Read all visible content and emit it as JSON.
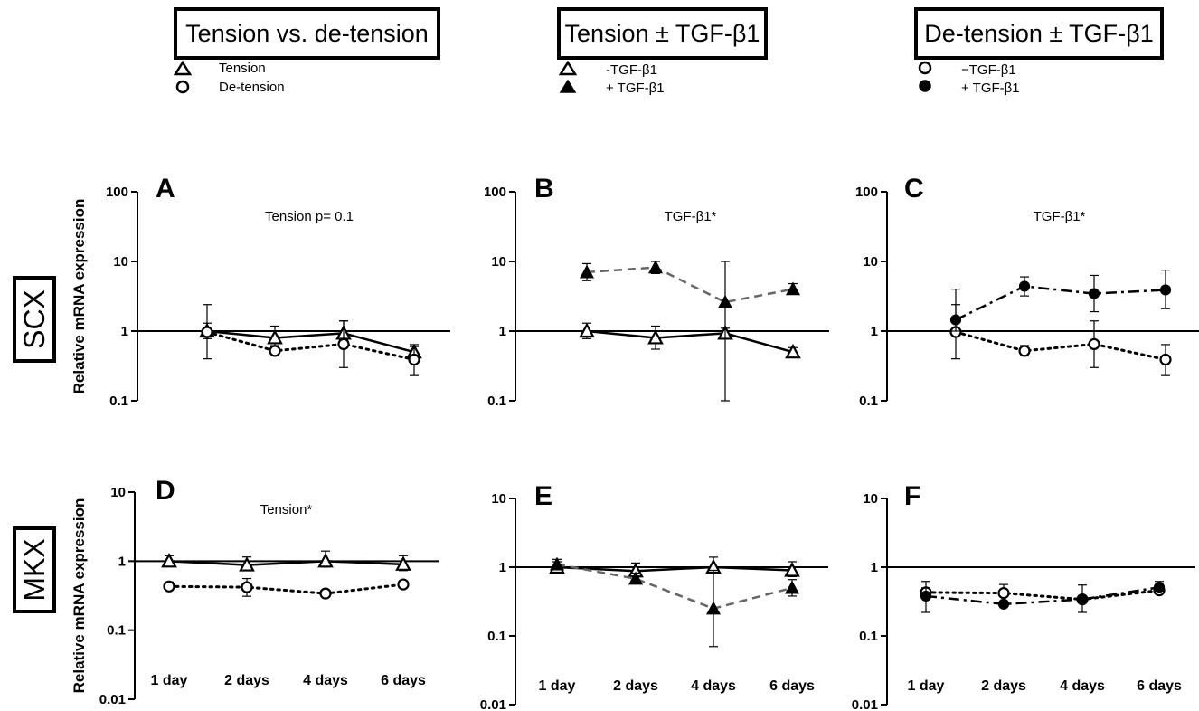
{
  "headers": {
    "tension_vs_detension": "Tension vs. de-tension",
    "tension_tgf": "Tension ± TGF-β1",
    "detension_tgf": "De-tension ± TGF-β1"
  },
  "legends": {
    "col1": [
      "Tension",
      "De-tension"
    ],
    "col2": [
      "-TGF-β1",
      "+ TGF-β1"
    ],
    "col3": [
      "−TGF-β1",
      "+ TGF-β1"
    ]
  },
  "row_labels": {
    "top": "SCX",
    "bottom": "MKX"
  },
  "y_axis_label": "Relative mRNA expression",
  "chart_data": [
    {
      "panel": "A",
      "type": "line",
      "row": "SCX",
      "annotation": "Tension p= 0.1",
      "x": [
        "1 day",
        "2 days",
        "4 days",
        "6 days"
      ],
      "show_x_labels": false,
      "yscale": "log",
      "ylim": [
        0.1,
        100
      ],
      "yticks": [
        "0.1",
        "1",
        "10",
        "100"
      ],
      "reference_line": 1,
      "ylabel": "Relative mRNA expression",
      "series": [
        {
          "name": "Tension",
          "marker": "triangle-open",
          "line": "solid",
          "color": "#000000",
          "values": [
            1.0,
            0.8,
            0.93,
            0.5
          ],
          "err_low": [
            0.78,
            0.6,
            0.75,
            0.45
          ],
          "err_high": [
            1.3,
            1.18,
            1.4,
            0.6
          ]
        },
        {
          "name": "De-tension",
          "marker": "circle-open",
          "line": "dotted",
          "color": "#000000",
          "values": [
            0.97,
            0.52,
            0.65,
            0.39
          ],
          "err_low": [
            0.4,
            0.44,
            0.3,
            0.23
          ],
          "err_high": [
            2.4,
            0.62,
            1.4,
            0.64
          ]
        }
      ]
    },
    {
      "panel": "B",
      "type": "line",
      "row": "SCX",
      "annotation": "TGF-β1*",
      "x": [
        "1 day",
        "2 days",
        "4 days",
        "6 days"
      ],
      "show_x_labels": false,
      "yscale": "log",
      "ylim": [
        0.1,
        100
      ],
      "yticks": [
        "0.1",
        "1",
        "10",
        "100"
      ],
      "reference_line": 1,
      "series": [
        {
          "name": "-TGF-β1",
          "marker": "triangle-open",
          "line": "solid",
          "color": "#000000",
          "values": [
            1.0,
            0.8,
            0.93,
            0.5
          ],
          "err_low": [
            0.78,
            0.55,
            0.78,
            0.45
          ],
          "err_high": [
            1.3,
            1.18,
            1.1,
            0.58
          ]
        },
        {
          "name": "+ TGF-β1",
          "marker": "triangle-filled",
          "line": "dashed",
          "color": "#666666",
          "values": [
            7.0,
            8.2,
            2.6,
            4.0
          ],
          "err_low": [
            5.3,
            6.7,
            0.1,
            3.4
          ],
          "err_high": [
            9.3,
            10.0,
            10.0,
            4.8
          ]
        }
      ]
    },
    {
      "panel": "C",
      "type": "line",
      "row": "SCX",
      "annotation": "TGF-β1*",
      "x": [
        "1 day",
        "2 days",
        "4 days",
        "6 days"
      ],
      "show_x_labels": false,
      "yscale": "log",
      "ylim": [
        0.1,
        100
      ],
      "yticks": [
        "0.1",
        "1",
        "10",
        "100"
      ],
      "reference_line": 1,
      "series": [
        {
          "name": "−TGF-β1",
          "marker": "circle-open",
          "line": "dotted",
          "color": "#000000",
          "values": [
            0.97,
            0.52,
            0.65,
            0.39
          ],
          "err_low": [
            0.4,
            0.44,
            0.3,
            0.23
          ],
          "err_high": [
            2.4,
            0.62,
            1.4,
            0.64
          ]
        },
        {
          "name": "+ TGF-β1",
          "marker": "circle-filled",
          "line": "dashdot",
          "color": "#000000",
          "values": [
            1.45,
            4.4,
            3.45,
            3.9
          ],
          "err_low": [
            1.0,
            3.2,
            1.9,
            2.1
          ],
          "err_high": [
            4.0,
            6.0,
            6.3,
            7.5
          ]
        }
      ]
    },
    {
      "panel": "D",
      "type": "line",
      "row": "MKX",
      "annotation": "Tension*",
      "x": [
        "1 day",
        "2 days",
        "4 days",
        "6 days"
      ],
      "show_x_labels": true,
      "yscale": "log",
      "ylim": [
        0.01,
        10
      ],
      "yticks": [
        "0.01",
        "0.1",
        "1",
        "10"
      ],
      "reference_line": 1,
      "ylabel": "Relative mRNA expression",
      "series": [
        {
          "name": "Tension",
          "marker": "triangle-open",
          "line": "solid",
          "color": "#000000",
          "values": [
            1.0,
            0.88,
            1.0,
            0.9
          ],
          "err_low": [
            0.88,
            0.74,
            0.82,
            0.73
          ],
          "err_high": [
            1.2,
            1.15,
            1.4,
            1.2
          ]
        },
        {
          "name": "De-tension",
          "marker": "circle-open",
          "line": "dotted",
          "color": "#000000",
          "values": [
            0.43,
            0.42,
            0.34,
            0.46
          ],
          "err_low": [
            0.38,
            0.31,
            0.31,
            0.41
          ],
          "err_high": [
            0.5,
            0.56,
            0.38,
            0.52
          ]
        }
      ]
    },
    {
      "panel": "E",
      "type": "line",
      "row": "MKX",
      "annotation": "",
      "x": [
        "1 day",
        "2 days",
        "4 days",
        "6 days"
      ],
      "show_x_labels": true,
      "yscale": "log",
      "ylim": [
        0.01,
        10
      ],
      "yticks": [
        "0.01",
        "0.1",
        "1",
        "10"
      ],
      "reference_line": 1,
      "series": [
        {
          "name": "-TGF-β1",
          "marker": "triangle-open",
          "line": "solid",
          "color": "#000000",
          "values": [
            1.0,
            0.88,
            1.0,
            0.9
          ],
          "err_low": [
            0.88,
            0.74,
            0.82,
            0.73
          ],
          "err_high": [
            1.2,
            1.15,
            1.4,
            1.2
          ]
        },
        {
          "name": "+ TGF-β1",
          "marker": "triangle-filled",
          "line": "dashed",
          "color": "#666666",
          "values": [
            1.1,
            0.68,
            0.25,
            0.5
          ],
          "err_low": [
            0.95,
            0.58,
            0.07,
            0.38
          ],
          "err_high": [
            1.3,
            0.82,
            0.9,
            0.66
          ]
        }
      ]
    },
    {
      "panel": "F",
      "type": "line",
      "row": "MKX",
      "annotation": "",
      "x": [
        "1 day",
        "2 days",
        "4 days",
        "6 days"
      ],
      "show_x_labels": true,
      "yscale": "log",
      "ylim": [
        0.01,
        10
      ],
      "yticks": [
        "0.01",
        "0.1",
        "1",
        "10"
      ],
      "reference_line": 1,
      "series": [
        {
          "name": "−TGF-β1",
          "marker": "circle-open",
          "line": "dotted",
          "color": "#000000",
          "values": [
            0.43,
            0.42,
            0.34,
            0.46
          ],
          "err_low": [
            0.38,
            0.31,
            0.31,
            0.41
          ],
          "err_high": [
            0.5,
            0.56,
            0.38,
            0.52
          ]
        },
        {
          "name": "+ TGF-β1",
          "marker": "circle-filled",
          "line": "dashdot",
          "color": "#000000",
          "values": [
            0.38,
            0.29,
            0.34,
            0.51
          ],
          "err_low": [
            0.22,
            0.27,
            0.22,
            0.45
          ],
          "err_high": [
            0.62,
            0.31,
            0.55,
            0.62
          ]
        }
      ]
    }
  ]
}
